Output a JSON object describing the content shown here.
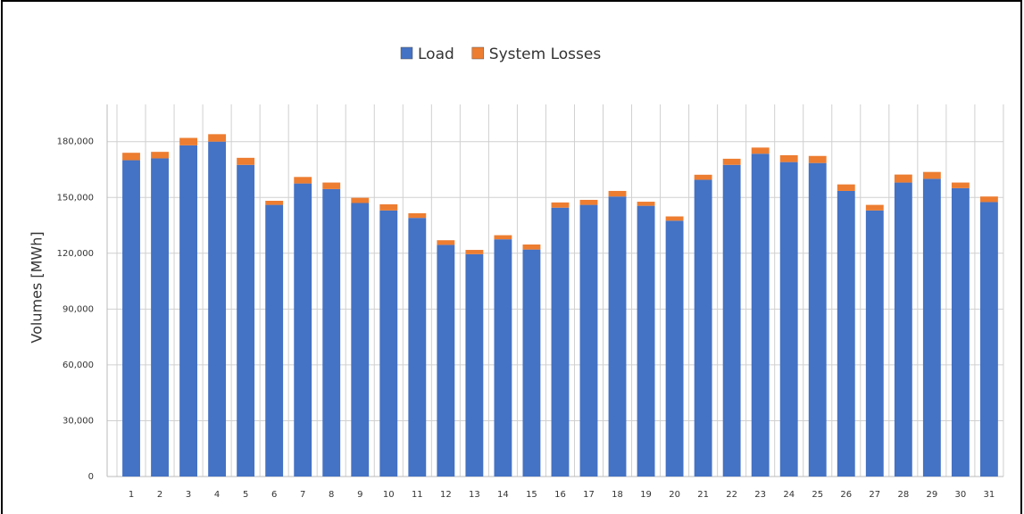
{
  "chart_data": {
    "type": "stacked_bar",
    "y_label": "Volumes [MWh]",
    "categories": [
      "1",
      "2",
      "3",
      "4",
      "5",
      "6",
      "7",
      "8",
      "9",
      "10",
      "11",
      "12",
      "13",
      "14",
      "15",
      "16",
      "17",
      "18",
      "19",
      "20",
      "21",
      "22",
      "23",
      "24",
      "25",
      "26",
      "27",
      "28",
      "29",
      "30",
      "31"
    ],
    "series": [
      {
        "name": "Load",
        "color": "#4472c4",
        "values": [
          170000,
          171000,
          178000,
          180000,
          167500,
          146000,
          157500,
          154500,
          147000,
          143000,
          139000,
          124500,
          119500,
          127500,
          122000,
          144500,
          146000,
          150500,
          145500,
          137500,
          159500,
          167500,
          173500,
          169000,
          168500,
          153500,
          143000,
          158000,
          160000,
          155000,
          147500
        ]
      },
      {
        "name": "System Losses",
        "color": "#ed7d31",
        "values": [
          4000,
          3500,
          4000,
          4000,
          3800,
          2200,
          3500,
          3500,
          2800,
          3300,
          2500,
          2500,
          2300,
          2200,
          2700,
          2800,
          2700,
          3000,
          2200,
          2300,
          2700,
          3300,
          3300,
          3700,
          3800,
          3500,
          3000,
          4300,
          3700,
          3000,
          3000
        ]
      }
    ],
    "ylim": [
      0,
      200000
    ],
    "yticks": [
      0,
      {
        "value": 30000,
        "label": "30,000"
      },
      {
        "value": 60000,
        "label": "60,000"
      },
      {
        "value": 90000,
        "label": "90,000"
      },
      {
        "value": 120000,
        "label": "120,000"
      },
      {
        "value": 150000,
        "label": "150,000"
      },
      {
        "value": 180000,
        "label": "180,000"
      }
    ],
    "grid": true,
    "legend": "top"
  }
}
